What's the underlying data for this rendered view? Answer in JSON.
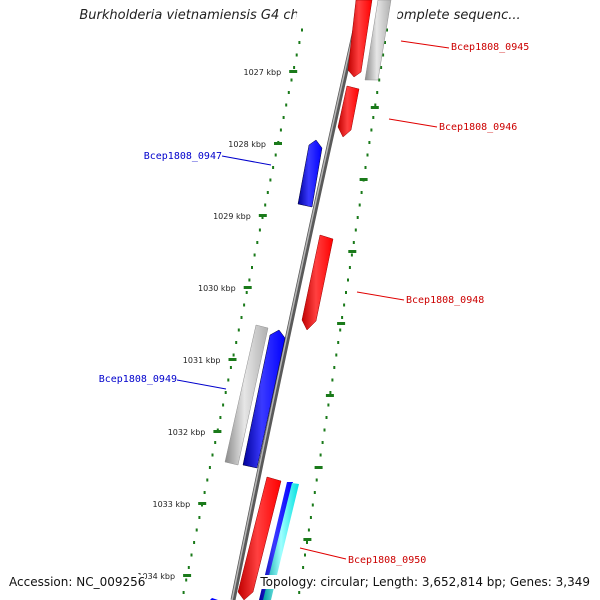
{
  "title": "Burkholderia vietnamiensis G4 chromosome 1, complete sequenc...",
  "footer": {
    "accession": "Accession: NC_009256",
    "summary": "Topology: circular; Length: 3,652,814 bp; Genes: 3,349"
  },
  "colors": {
    "forward_strand": "#ff0000",
    "reverse_strand": "#0000ff",
    "cds_track": "#b0b0b0",
    "other_feature": "#00ffff",
    "tick": "#1a7a1a",
    "backbone": "#808080"
  },
  "ticks": [
    "1027 kbp",
    "1028 kbp",
    "1029 kbp",
    "1030 kbp",
    "1031 kbp",
    "1032 kbp",
    "1033 kbp",
    "1034 kbp"
  ],
  "genes": [
    {
      "label": "Bcep1808_0945",
      "strand": "forward"
    },
    {
      "label": "Bcep1808_0946",
      "strand": "forward"
    },
    {
      "label": "Bcep1808_0947",
      "strand": "reverse"
    },
    {
      "label": "Bcep1808_0948",
      "strand": "forward"
    },
    {
      "label": "Bcep1808_0949",
      "strand": "reverse"
    },
    {
      "label": "Bcep1808_0950",
      "strand": "forward"
    }
  ]
}
